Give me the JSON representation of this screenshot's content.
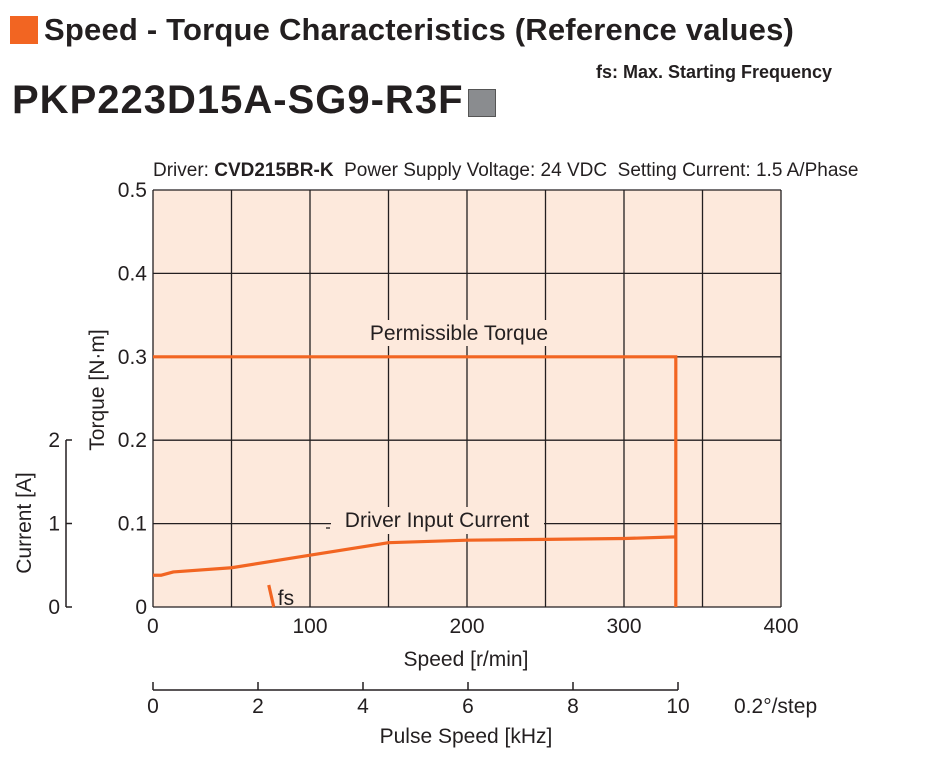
{
  "header": {
    "title": "Speed - Torque Characteristics (Reference values)",
    "model": "PKP223D15A-SG9-R3F",
    "fs_note": "fs: Max. Starting Frequency"
  },
  "conditions": {
    "driver_prefix": "Driver: ",
    "driver_name": "CVD215BR-K",
    "rest": "  Power Supply Voltage: 24 VDC  Setting Current: 1.5 A/Phase"
  },
  "colors": {
    "accent": "#f26522",
    "plot_bg": "#fde9dc",
    "grid": "#231f20",
    "model_square": "#8a8c8f"
  },
  "chart_data": {
    "type": "line",
    "title": "",
    "xlabel": "Speed [r/min]",
    "x_ticks": [
      "0",
      "100",
      "200",
      "300",
      "400"
    ],
    "xlim": [
      0,
      400
    ],
    "x2_label": "Pulse Speed [kHz]",
    "x2_ticks": [
      "0",
      "2",
      "4",
      "6",
      "8",
      "10"
    ],
    "x2_unit": "0.2°/step",
    "ylabel": "Torque [N·m]",
    "y_ticks": [
      "0",
      "0.1",
      "0.2",
      "0.3",
      "0.4",
      "0.5"
    ],
    "ylim": [
      0,
      0.5
    ],
    "y2_label": "Current [A]",
    "y2_ticks": [
      "0",
      "1",
      "2"
    ],
    "y2lim": [
      0,
      2
    ],
    "grid": true,
    "series": [
      {
        "name": "Permissible Torque",
        "axis": "torque",
        "x": [
          0,
          333,
          333
        ],
        "y": [
          0.3,
          0.3,
          0
        ]
      },
      {
        "name": "Driver Input Current",
        "axis": "current",
        "x": [
          0,
          5,
          13,
          50,
          100,
          150,
          200,
          250,
          300,
          333
        ],
        "y": [
          0.38,
          0.38,
          0.42,
          0.47,
          0.62,
          0.77,
          0.8,
          0.81,
          0.82,
          0.84
        ]
      }
    ],
    "annotations": [
      {
        "text": "fs",
        "x": 75,
        "y_current": 0.1
      }
    ]
  }
}
